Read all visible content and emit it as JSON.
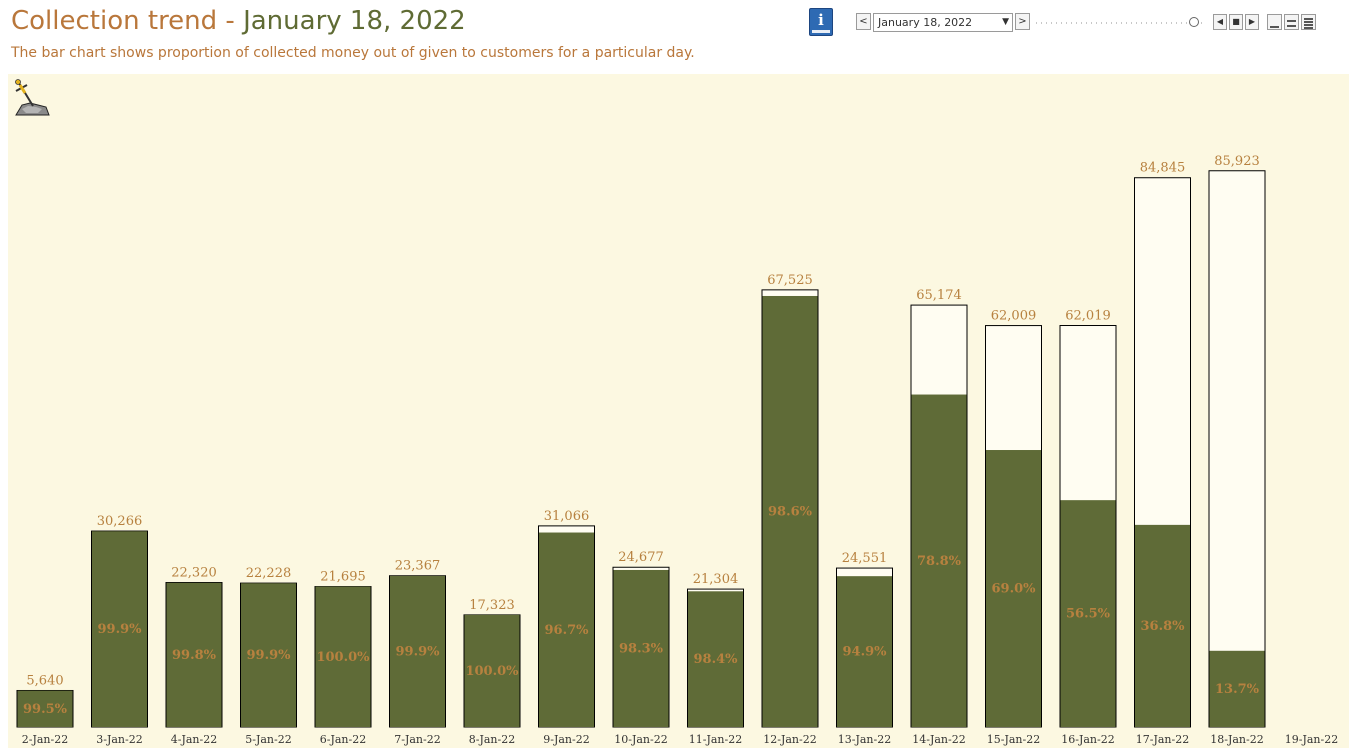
{
  "header": {
    "title_main": "Collection trend - ",
    "title_date": "January 18, 2022",
    "subtitle": "The bar chart shows proportion of collected money out of given to customers for a particular day."
  },
  "toolbar": {
    "info_icon": "info-book-icon",
    "info_label": "i",
    "prev_label": "<",
    "next_label": ">",
    "date_value": "January 18, 2022",
    "dropdown_caret": "▼",
    "slider_position": 0.93,
    "step_back_label": "◀",
    "stop_label": "■",
    "step_forward_label": "▶",
    "view_icons": [
      "minimal-view-icon",
      "compact-view-icon",
      "full-view-icon"
    ]
  },
  "colors": {
    "background": "#fcf8e1",
    "collected_fill": "#5f6b37",
    "given_fill": "#fffdf2",
    "given_stroke": "#000000",
    "label_color": "#b7813f",
    "title_color": "#b9773b",
    "title_date_color": "#5f6b34"
  },
  "chart_data": {
    "type": "bar",
    "title": "",
    "xlabel": "",
    "ylabel": "",
    "ylim": [
      0,
      95000
    ],
    "grid": false,
    "legend": "none",
    "categories": [
      "2-Jan-22",
      "3-Jan-22",
      "4-Jan-22",
      "5-Jan-22",
      "6-Jan-22",
      "7-Jan-22",
      "8-Jan-22",
      "9-Jan-22",
      "10-Jan-22",
      "11-Jan-22",
      "12-Jan-22",
      "13-Jan-22",
      "14-Jan-22",
      "15-Jan-22",
      "16-Jan-22",
      "17-Jan-22",
      "18-Jan-22",
      "19-Jan-22"
    ],
    "given": [
      5640,
      30266,
      22320,
      22228,
      21695,
      23367,
      17323,
      31066,
      24677,
      21304,
      67525,
      24551,
      65174,
      62009,
      62019,
      84845,
      85923,
      null
    ],
    "given_labels": [
      "5,640",
      "30,266",
      "22,320",
      "22,228",
      "21,695",
      "23,367",
      "17,323",
      "31,066",
      "24,677",
      "21,304",
      "67,525",
      "24,551",
      "65,174",
      "62,009",
      "62,019",
      "84,845",
      "85,923",
      ""
    ],
    "collected_pct": [
      99.5,
      99.9,
      99.8,
      99.9,
      100.0,
      99.9,
      100.0,
      96.7,
      98.3,
      98.4,
      98.6,
      94.9,
      78.8,
      69.0,
      56.5,
      36.8,
      13.7,
      null
    ],
    "collected_labels": [
      "99.5%",
      "99.9%",
      "99.8%",
      "99.9%",
      "100.0%",
      "99.9%",
      "100.0%",
      "96.7%",
      "98.3%",
      "98.4%",
      "98.6%",
      "94.9%",
      "78.8%",
      "69.0%",
      "56.5%",
      "36.8%",
      "13.7%",
      ""
    ]
  }
}
